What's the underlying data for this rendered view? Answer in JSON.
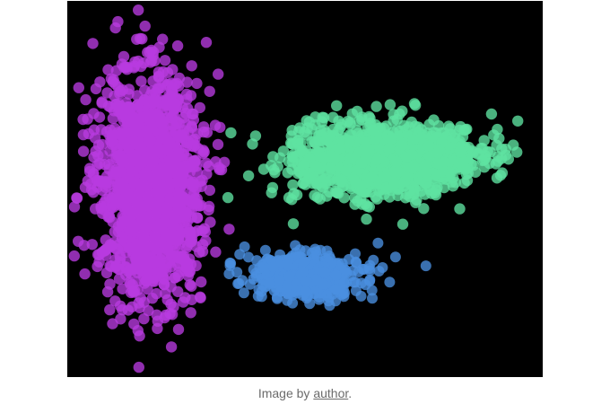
{
  "figure": {
    "alt": "scatter plot with three colored clusters",
    "background": "#000000"
  },
  "chart_data": {
    "type": "scatter",
    "title": "",
    "xlabel": "",
    "ylabel": "",
    "grid": false,
    "legend": "none",
    "series": [
      {
        "color": "#b93be0",
        "shape": "vertical-ellipse",
        "count": 1600
      },
      {
        "color": "#5fe3a1",
        "shape": "horizontal-ellipse",
        "count": 1300
      },
      {
        "color": "#4a8fe0",
        "shape": "small-ellipse",
        "count": 500
      }
    ]
  },
  "caption": {
    "prefix": "Image by ",
    "link_text": "author",
    "suffix": "."
  }
}
